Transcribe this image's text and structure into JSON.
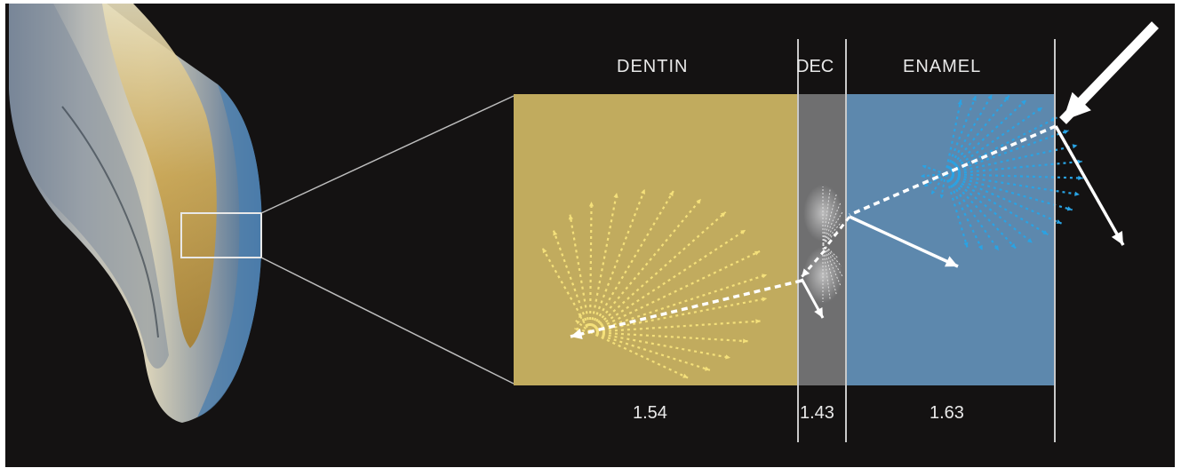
{
  "layers": {
    "dentin": {
      "label": "DENTIN",
      "index": "1.54",
      "color": "#c1ab5e"
    },
    "dec": {
      "label": "DEC",
      "index": "1.43",
      "color": "#6f6f70"
    },
    "enamel": {
      "label": "ENAMEL",
      "index": "1.63",
      "color": "#5d88ad"
    }
  },
  "colors": {
    "background": "#141212",
    "scatter_dentin": "#f4e07a",
    "scatter_enamel": "#29a3e4",
    "ray": "#ffffff"
  },
  "icons": {
    "incident_ray": "arrow-icon",
    "tooth": "tooth-section-image"
  }
}
